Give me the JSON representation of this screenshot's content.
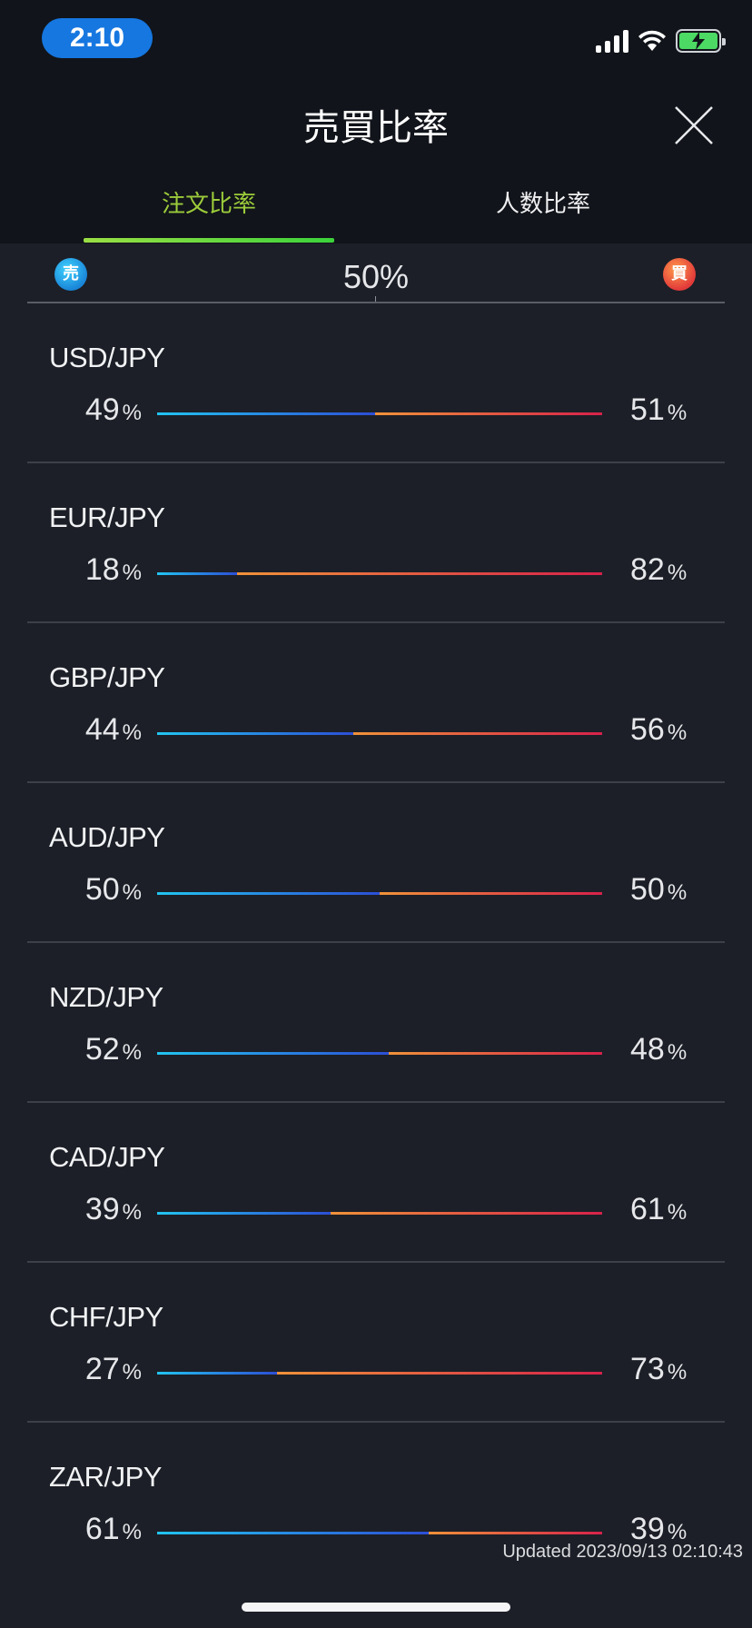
{
  "status_bar": {
    "time": "2:10"
  },
  "header": {
    "title": "売買比率"
  },
  "tabs": [
    {
      "label": "注文比率",
      "active": true
    },
    {
      "label": "人数比率",
      "active": false
    }
  ],
  "legend": {
    "sell_badge": "売",
    "buy_badge": "買",
    "midpoint": "50%"
  },
  "percent_unit": "%",
  "pairs": [
    {
      "name": "USD/JPY",
      "sell": 49,
      "buy": 51
    },
    {
      "name": "EUR/JPY",
      "sell": 18,
      "buy": 82
    },
    {
      "name": "GBP/JPY",
      "sell": 44,
      "buy": 56
    },
    {
      "name": "AUD/JPY",
      "sell": 50,
      "buy": 50
    },
    {
      "name": "NZD/JPY",
      "sell": 52,
      "buy": 48
    },
    {
      "name": "CAD/JPY",
      "sell": 39,
      "buy": 61
    },
    {
      "name": "CHF/JPY",
      "sell": 27,
      "buy": 73
    },
    {
      "name": "ZAR/JPY",
      "sell": 61,
      "buy": 39
    }
  ],
  "updated": "Updated  2023/09/13 02:10:43",
  "colors": {
    "accent_tab": "#9ccc3a",
    "sell": "#2c4fd6",
    "buy": "#d7224a"
  }
}
